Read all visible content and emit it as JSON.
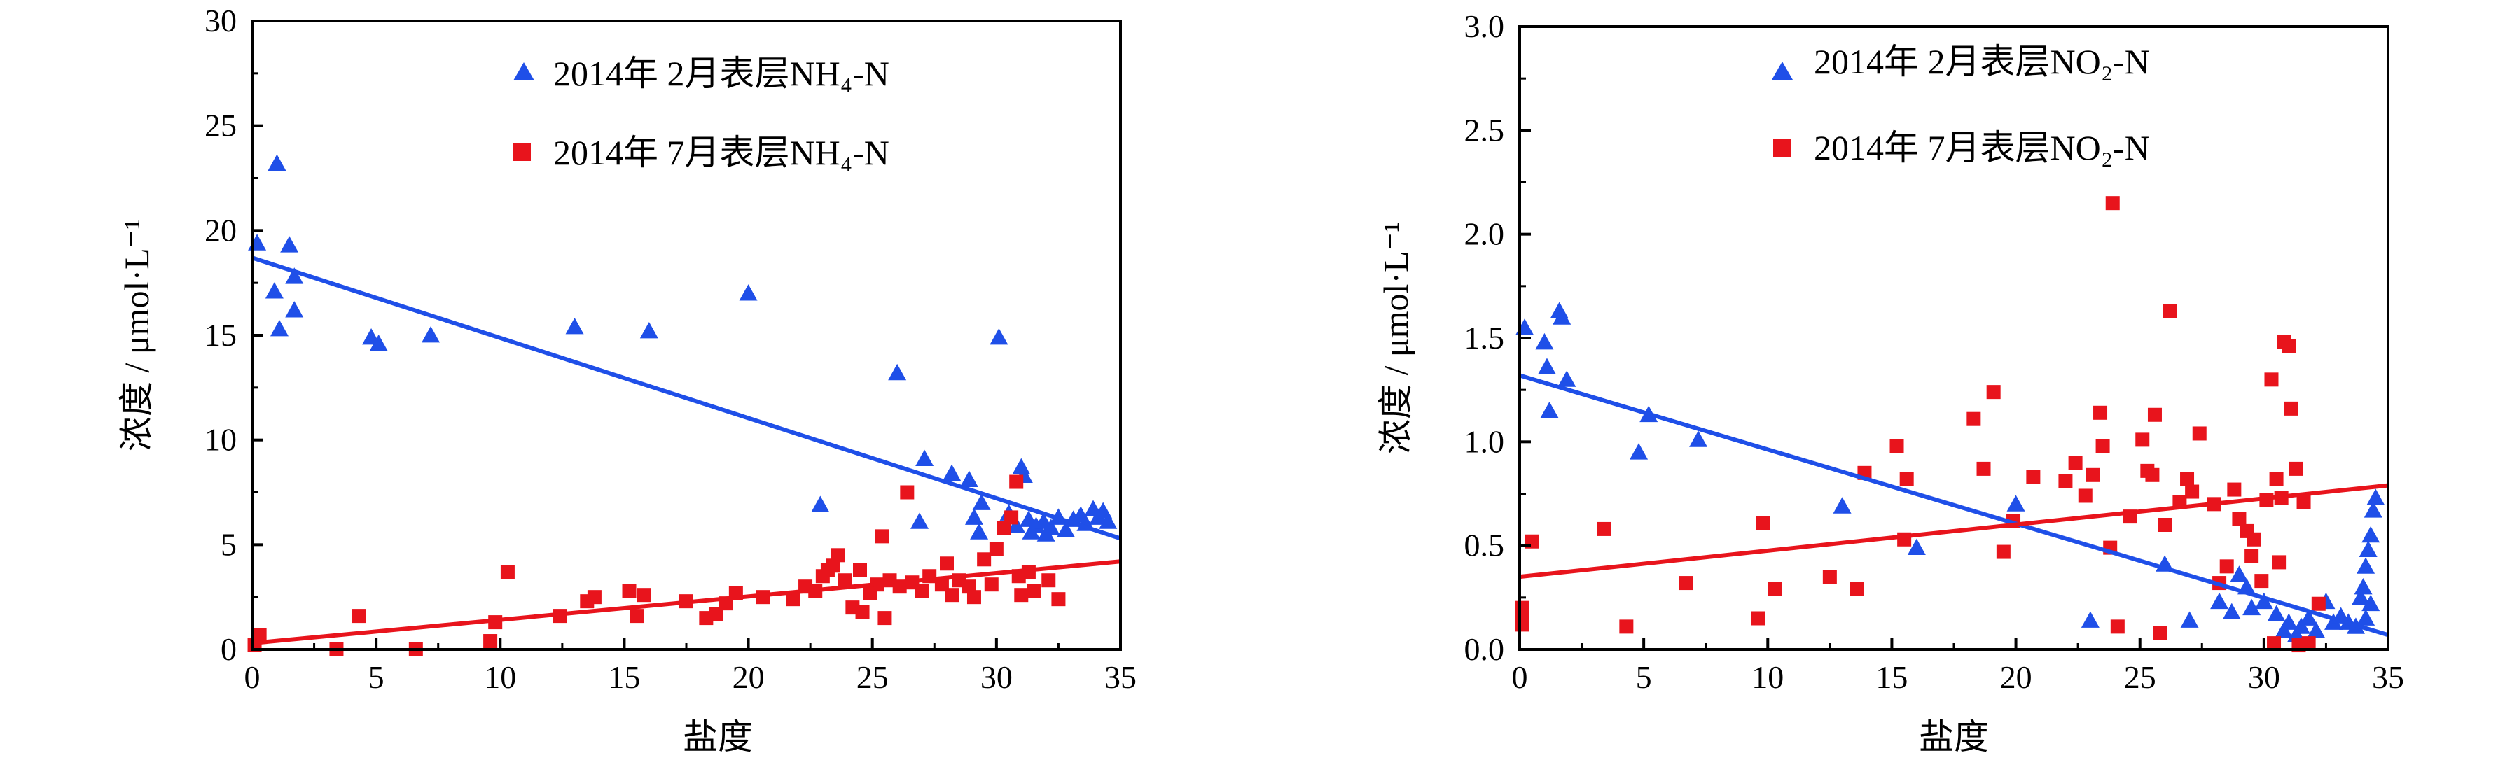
{
  "chart_data": [
    {
      "type": "scatter",
      "xlabel": "盐度",
      "ylabel": "浓度 / μmol·L⁻¹",
      "xlim": [
        0,
        35
      ],
      "ylim": [
        0,
        30
      ],
      "xticks": [
        "0",
        "5",
        "10",
        "15",
        "20",
        "25",
        "30",
        "35"
      ],
      "yticks": [
        "0",
        "5",
        "10",
        "15",
        "20",
        "25",
        "30"
      ],
      "legend_position": "top-center",
      "series": [
        {
          "name": "2014年 2月表层NH₄-N",
          "marker": "triangle",
          "color": "#1f4fe8",
          "points": [
            [
              0.2,
              19.4
            ],
            [
              1.0,
              23.2
            ],
            [
              0.9,
              17.1
            ],
            [
              1.1,
              15.3
            ],
            [
              1.5,
              19.3
            ],
            [
              1.7,
              16.2
            ],
            [
              1.7,
              17.8
            ],
            [
              4.8,
              14.9
            ],
            [
              5.1,
              14.6
            ],
            [
              7.2,
              15.0
            ],
            [
              13.0,
              15.4
            ],
            [
              16.0,
              15.2
            ],
            [
              20.0,
              17.0
            ],
            [
              26.0,
              13.2
            ],
            [
              22.9,
              6.9
            ],
            [
              26.9,
              6.1
            ],
            [
              27.1,
              9.1
            ],
            [
              28.2,
              8.4
            ],
            [
              28.9,
              8.1
            ],
            [
              29.1,
              6.3
            ],
            [
              29.4,
              7.0
            ],
            [
              29.3,
              5.6
            ],
            [
              30.1,
              14.9
            ],
            [
              30.5,
              6.5
            ],
            [
              31.0,
              8.7
            ],
            [
              31.1,
              8.3
            ],
            [
              31.3,
              6.2
            ],
            [
              31.6,
              5.9
            ],
            [
              31.9,
              6.1
            ],
            [
              32.2,
              5.8
            ],
            [
              32.5,
              6.3
            ],
            [
              32.8,
              5.7
            ],
            [
              33.1,
              6.2
            ],
            [
              33.4,
              6.4
            ],
            [
              33.6,
              6.0
            ],
            [
              33.9,
              6.7
            ],
            [
              34.1,
              6.3
            ],
            [
              34.3,
              6.6
            ],
            [
              34.5,
              6.1
            ],
            [
              31.4,
              5.6
            ],
            [
              32.0,
              5.5
            ],
            [
              30.8,
              5.9
            ]
          ]
        },
        {
          "name": "2014年 7月表层NH₄-N",
          "marker": "square",
          "color": "#e8141c",
          "points": [
            [
              0.1,
              0.2
            ],
            [
              0.3,
              0.7
            ],
            [
              3.4,
              0.0
            ],
            [
              4.3,
              1.6
            ],
            [
              6.6,
              0.0
            ],
            [
              9.6,
              0.4
            ],
            [
              9.8,
              1.3
            ],
            [
              10.3,
              3.7
            ],
            [
              12.4,
              1.6
            ],
            [
              13.5,
              2.3
            ],
            [
              13.8,
              2.5
            ],
            [
              15.2,
              2.8
            ],
            [
              15.5,
              1.6
            ],
            [
              15.8,
              2.6
            ],
            [
              17.5,
              2.3
            ],
            [
              18.3,
              1.5
            ],
            [
              18.7,
              1.7
            ],
            [
              19.1,
              2.2
            ],
            [
              19.5,
              2.7
            ],
            [
              20.6,
              2.5
            ],
            [
              21.8,
              2.4
            ],
            [
              22.3,
              3.0
            ],
            [
              22.7,
              2.8
            ],
            [
              23.0,
              3.5
            ],
            [
              23.4,
              4.0
            ],
            [
              23.6,
              4.5
            ],
            [
              23.9,
              3.3
            ],
            [
              24.2,
              2.0
            ],
            [
              24.6,
              1.8
            ],
            [
              24.9,
              2.7
            ],
            [
              25.2,
              3.1
            ],
            [
              25.4,
              5.4
            ],
            [
              25.5,
              1.5
            ],
            [
              25.7,
              3.3
            ],
            [
              26.1,
              3.0
            ],
            [
              26.4,
              7.5
            ],
            [
              26.6,
              3.2
            ],
            [
              27.0,
              2.8
            ],
            [
              27.3,
              3.5
            ],
            [
              27.8,
              3.1
            ],
            [
              28.2,
              2.6
            ],
            [
              28.5,
              3.3
            ],
            [
              28.9,
              3.0
            ],
            [
              29.1,
              2.5
            ],
            [
              29.5,
              4.3
            ],
            [
              29.8,
              3.1
            ],
            [
              30.0,
              4.8
            ],
            [
              30.3,
              5.8
            ],
            [
              30.6,
              6.3
            ],
            [
              30.8,
              8.0
            ],
            [
              30.9,
              3.5
            ],
            [
              31.0,
              2.6
            ],
            [
              31.3,
              3.7
            ],
            [
              31.5,
              2.8
            ],
            [
              32.1,
              3.3
            ],
            [
              32.5,
              2.4
            ],
            [
              24.5,
              3.8
            ],
            [
              23.2,
              3.8
            ],
            [
              28.0,
              4.1
            ]
          ]
        }
      ],
      "fit_lines": [
        {
          "series": "2014年 2月表层NH₄-N",
          "x": [
            0,
            35
          ],
          "y": [
            18.7,
            5.3
          ],
          "color": "#1f4fe8"
        },
        {
          "series": "2014年 7月表层NH₄-N",
          "x": [
            0,
            35
          ],
          "y": [
            0.3,
            4.2
          ],
          "color": "#e8141c"
        }
      ]
    },
    {
      "type": "scatter",
      "xlabel": "盐度",
      "ylabel": "浓度 / μmol·L⁻¹",
      "xlim": [
        0,
        35
      ],
      "ylim": [
        0,
        3.0
      ],
      "xticks": [
        "0",
        "5",
        "10",
        "15",
        "20",
        "25",
        "30",
        "35"
      ],
      "yticks": [
        "0.0",
        "0.5",
        "1.0",
        "1.5",
        "2.0",
        "2.5",
        "3.0"
      ],
      "legend_position": "top-center",
      "series": [
        {
          "name": "2014年 2月表层NO₂-N",
          "marker": "triangle",
          "color": "#1f4fe8",
          "points": [
            [
              0.2,
              1.55
            ],
            [
              1.0,
              1.48
            ],
            [
              1.1,
              1.36
            ],
            [
              1.2,
              1.15
            ],
            [
              1.6,
              1.63
            ],
            [
              1.7,
              1.6
            ],
            [
              1.9,
              1.3
            ],
            [
              4.8,
              0.95
            ],
            [
              5.2,
              1.13
            ],
            [
              7.2,
              1.01
            ],
            [
              13.0,
              0.69
            ],
            [
              16.0,
              0.49
            ],
            [
              20.0,
              0.7
            ],
            [
              23.0,
              0.14
            ],
            [
              26.0,
              0.41
            ],
            [
              27.0,
              0.14
            ],
            [
              28.2,
              0.23
            ],
            [
              28.7,
              0.18
            ],
            [
              29.0,
              0.36
            ],
            [
              29.3,
              0.3
            ],
            [
              29.5,
              0.2
            ],
            [
              30.0,
              0.23
            ],
            [
              30.5,
              0.17
            ],
            [
              30.8,
              0.09
            ],
            [
              31.0,
              0.13
            ],
            [
              31.3,
              0.07
            ],
            [
              31.5,
              0.11
            ],
            [
              31.8,
              0.15
            ],
            [
              32.1,
              0.09
            ],
            [
              32.5,
              0.23
            ],
            [
              32.8,
              0.13
            ],
            [
              33.1,
              0.16
            ],
            [
              33.4,
              0.13
            ],
            [
              33.7,
              0.11
            ],
            [
              34.0,
              0.3
            ],
            [
              34.1,
              0.4
            ],
            [
              34.2,
              0.48
            ],
            [
              34.3,
              0.55
            ],
            [
              34.4,
              0.67
            ],
            [
              34.5,
              0.73
            ],
            [
              34.3,
              0.22
            ],
            [
              34.1,
              0.15
            ],
            [
              33.9,
              0.25
            ]
          ]
        },
        {
          "name": "2014年 7月表层NO₂-N",
          "marker": "square",
          "color": "#e8141c",
          "points": [
            [
              0.1,
              0.12
            ],
            [
              0.1,
              0.18
            ],
            [
              0.1,
              0.2
            ],
            [
              0.5,
              0.52
            ],
            [
              3.4,
              0.58
            ],
            [
              4.3,
              0.11
            ],
            [
              6.7,
              0.32
            ],
            [
              9.6,
              0.15
            ],
            [
              9.8,
              0.61
            ],
            [
              10.3,
              0.29
            ],
            [
              12.5,
              0.35
            ],
            [
              13.6,
              0.29
            ],
            [
              13.9,
              0.85
            ],
            [
              15.2,
              0.98
            ],
            [
              15.5,
              0.53
            ],
            [
              15.6,
              0.82
            ],
            [
              18.3,
              1.11
            ],
            [
              18.7,
              0.87
            ],
            [
              19.1,
              1.24
            ],
            [
              19.5,
              0.47
            ],
            [
              19.9,
              0.62
            ],
            [
              20.7,
              0.83
            ],
            [
              22.0,
              0.81
            ],
            [
              22.4,
              0.9
            ],
            [
              22.8,
              0.74
            ],
            [
              23.1,
              0.84
            ],
            [
              23.4,
              1.14
            ],
            [
              23.5,
              0.98
            ],
            [
              23.8,
              0.49
            ],
            [
              23.9,
              2.15
            ],
            [
              24.1,
              0.11
            ],
            [
              24.6,
              0.64
            ],
            [
              25.1,
              1.01
            ],
            [
              25.3,
              0.86
            ],
            [
              25.5,
              0.84
            ],
            [
              25.6,
              1.13
            ],
            [
              25.8,
              0.08
            ],
            [
              26.0,
              0.6
            ],
            [
              26.2,
              1.63
            ],
            [
              26.6,
              0.71
            ],
            [
              26.9,
              0.82
            ],
            [
              27.1,
              0.76
            ],
            [
              27.4,
              1.04
            ],
            [
              28.0,
              0.7
            ],
            [
              28.5,
              0.4
            ],
            [
              28.8,
              0.77
            ],
            [
              29.0,
              0.63
            ],
            [
              29.3,
              0.57
            ],
            [
              29.6,
              0.53
            ],
            [
              29.9,
              0.33
            ],
            [
              30.1,
              0.72
            ],
            [
              30.3,
              1.3
            ],
            [
              30.4,
              0.03
            ],
            [
              30.5,
              0.82
            ],
            [
              30.6,
              0.42
            ],
            [
              30.7,
              0.73
            ],
            [
              30.8,
              1.48
            ],
            [
              31.0,
              1.46
            ],
            [
              31.1,
              1.16
            ],
            [
              31.3,
              0.87
            ],
            [
              31.4,
              0.02
            ],
            [
              31.6,
              0.71
            ],
            [
              31.8,
              0.03
            ],
            [
              32.2,
              0.22
            ],
            [
              29.5,
              0.45
            ],
            [
              28.2,
              0.32
            ]
          ]
        }
      ],
      "fit_lines": [
        {
          "series": "2014年 2月表层NO₂-N",
          "x": [
            0,
            35
          ],
          "y": [
            1.32,
            0.07
          ],
          "color": "#1f4fe8"
        },
        {
          "series": "2014年 7月表层NO₂-N",
          "x": [
            0,
            35
          ],
          "y": [
            0.35,
            0.79
          ],
          "color": "#e8141c"
        }
      ]
    }
  ]
}
